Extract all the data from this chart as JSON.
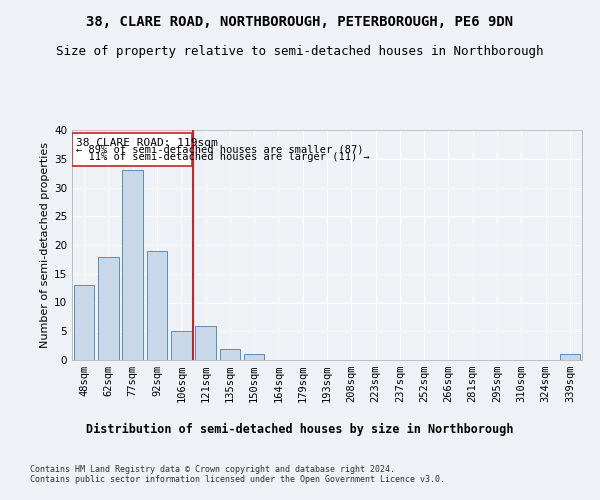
{
  "title1": "38, CLARE ROAD, NORTHBOROUGH, PETERBOROUGH, PE6 9DN",
  "title2": "Size of property relative to semi-detached houses in Northborough",
  "xlabel": "Distribution of semi-detached houses by size in Northborough",
  "ylabel": "Number of semi-detached properties",
  "footnote": "Contains HM Land Registry data © Crown copyright and database right 2024.\nContains public sector information licensed under the Open Government Licence v3.0.",
  "categories": [
    "48sqm",
    "62sqm",
    "77sqm",
    "92sqm",
    "106sqm",
    "121sqm",
    "135sqm",
    "150sqm",
    "164sqm",
    "179sqm",
    "193sqm",
    "208sqm",
    "223sqm",
    "237sqm",
    "252sqm",
    "266sqm",
    "281sqm",
    "295sqm",
    "310sqm",
    "324sqm",
    "339sqm"
  ],
  "values": [
    13,
    18,
    33,
    19,
    5,
    6,
    2,
    1,
    0,
    0,
    0,
    0,
    0,
    0,
    0,
    0,
    0,
    0,
    0,
    0,
    1
  ],
  "bar_color": "#c8d8e8",
  "bar_edge_color": "#5b8db8",
  "property_line_index": 5,
  "property_label": "38 CLARE ROAD: 119sqm",
  "pct_smaller": 89,
  "count_smaller": 87,
  "pct_larger": 11,
  "count_larger": 11,
  "vline_color": "#cc2222",
  "annotation_box_color": "#cc2222",
  "ylim": [
    0,
    40
  ],
  "yticks": [
    0,
    5,
    10,
    15,
    20,
    25,
    30,
    35,
    40
  ],
  "background_color": "#eef2f7",
  "ax_background": "#eef2f7",
  "grid_color": "#ffffff",
  "title1_fontsize": 10,
  "title2_fontsize": 9,
  "axis_label_fontsize": 8.5,
  "ylabel_fontsize": 8,
  "tick_fontsize": 7.5,
  "annotation_fontsize": 8,
  "footnote_fontsize": 6
}
